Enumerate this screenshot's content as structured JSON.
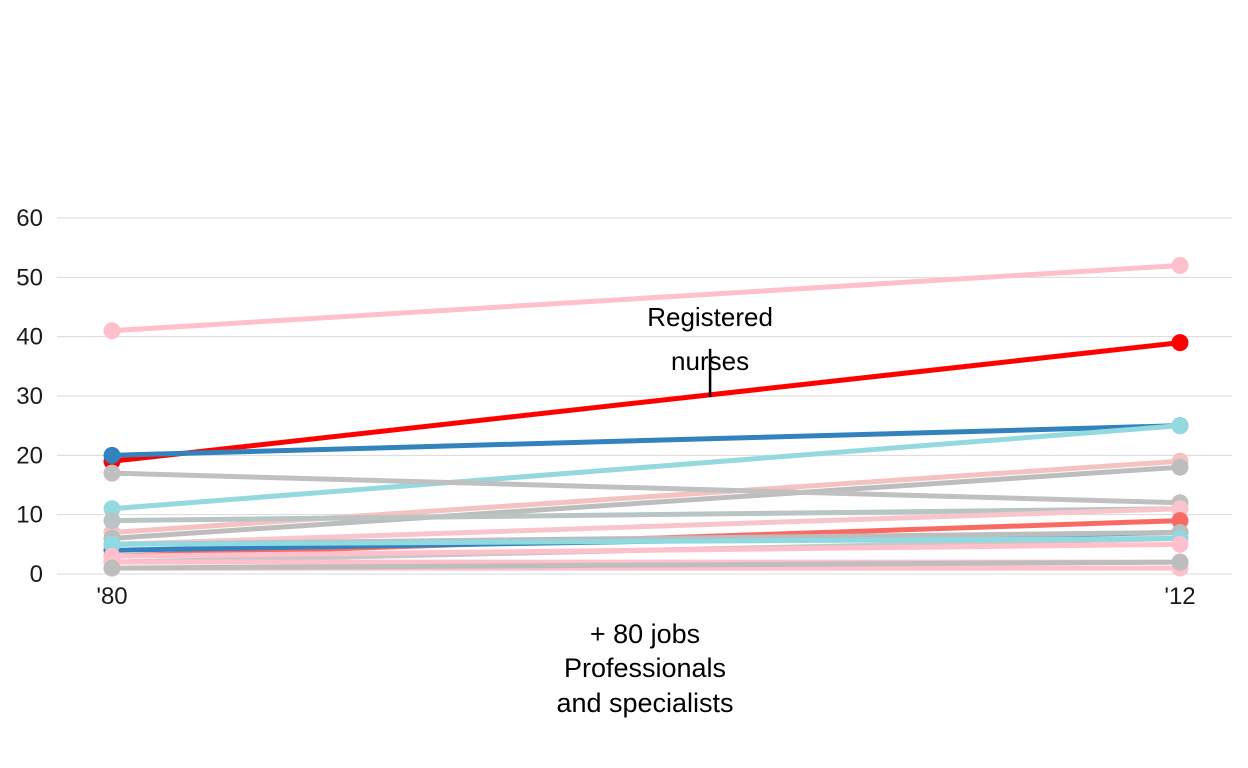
{
  "chart_data": {
    "type": "line",
    "x": [
      "'80",
      "'12"
    ],
    "ylim": [
      0,
      60
    ],
    "y_ticks": [
      0,
      10,
      20,
      30,
      40,
      50,
      60
    ],
    "grid": true,
    "legend": "none",
    "caption_lines": [
      "+ 80 jobs",
      "Professionals",
      "and specialists"
    ],
    "annotation": {
      "text_lines": [
        "Registered",
        "nurses"
      ],
      "series_index": 1,
      "at_fraction": 0.56
    },
    "series": [
      {
        "values": [
          41,
          52
        ],
        "color": "#ffc0cb"
      },
      {
        "values": [
          19,
          39
        ],
        "color": "#ff0000"
      },
      {
        "values": [
          20,
          25
        ],
        "color": "#3182bd"
      },
      {
        "values": [
          11,
          25
        ],
        "color": "#94d9e0"
      },
      {
        "values": [
          7,
          19
        ],
        "color": "#f4c2c2"
      },
      {
        "values": [
          6,
          18
        ],
        "color": "#bdbdbd"
      },
      {
        "values": [
          17,
          12
        ],
        "color": "#c0c0c0"
      },
      {
        "values": [
          9,
          11
        ],
        "color": "#b9c4c4"
      },
      {
        "values": [
          5,
          11
        ],
        "color": "#f9c5cc"
      },
      {
        "values": [
          3,
          9
        ],
        "color": "#fa6a62"
      },
      {
        "values": [
          4,
          7
        ],
        "color": "#3182bd"
      },
      {
        "values": [
          2,
          6
        ],
        "color": "#c7c7c7"
      },
      {
        "values": [
          5,
          7
        ],
        "color": "#bdbdbd"
      },
      {
        "values": [
          5,
          6
        ],
        "color": "#8fd9e0"
      },
      {
        "values": [
          3,
          5
        ],
        "color": "#ffc0cb"
      },
      {
        "values": [
          2,
          2
        ],
        "color": "#ffc0cb"
      },
      {
        "values": [
          1,
          1
        ],
        "color": "#ffc0cb"
      },
      {
        "values": [
          1,
          2
        ],
        "color": "#bdbdbd"
      }
    ]
  }
}
